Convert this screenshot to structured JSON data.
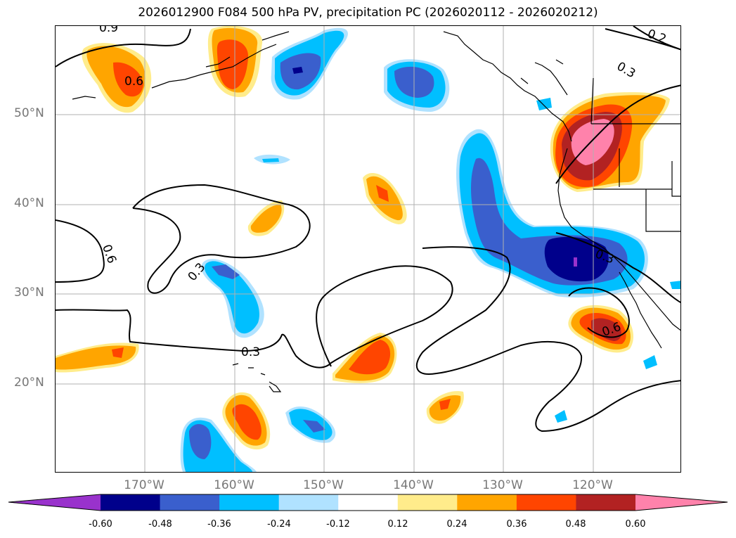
{
  "title": "2026012900 F084 500 hPa PV, precipitation PC (2026020112 - 2026020212)",
  "lat_labels": [
    "50°N",
    "40°N",
    "30°N",
    "20°N"
  ],
  "lon_labels": [
    "170°W",
    "160°W",
    "150°W",
    "140°W",
    "130°W",
    "120°W"
  ],
  "contour_labels": [
    "0.9",
    "0.6",
    "0.3",
    "0.3",
    "0.6",
    "0.3",
    "0.3",
    "0.3",
    "0.6",
    "0.2"
  ],
  "colorbar": {
    "ticks": [
      "-0.60",
      "-0.48",
      "-0.36",
      "-0.24",
      "-0.12",
      "0.12",
      "0.24",
      "0.36",
      "0.48",
      "0.60"
    ],
    "colors": [
      "#9932cc",
      "#00008b",
      "#3a5fcd",
      "#00bfff",
      "#b0e2ff",
      "#ffffff",
      "#ffec8b",
      "#ffa500",
      "#ff4500",
      "#b22222",
      "#ff82ab"
    ]
  },
  "colors": {
    "grid": "#b0b0b0",
    "coast": "#000000",
    "contour": "#000000"
  }
}
